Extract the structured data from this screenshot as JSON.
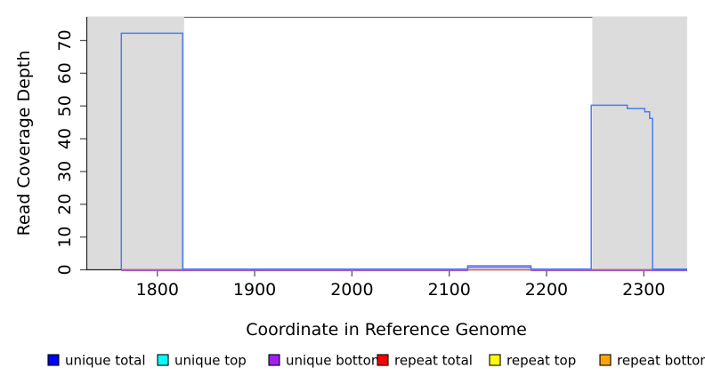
{
  "chart_data": {
    "type": "line",
    "title": "",
    "xlabel": "Coordinate in Reference Genome",
    "ylabel": "Read Coverage Depth",
    "xlim": [
      1727,
      2344.5
    ],
    "ylim": [
      0,
      77.2
    ],
    "x_ticks": [
      1800,
      1900,
      2000,
      2100,
      2200,
      2300
    ],
    "y_ticks": [
      0,
      10,
      20,
      30,
      40,
      50,
      60,
      70
    ],
    "grid": false,
    "legend_position": "bottom",
    "shaded_regions": [
      {
        "name": "left-repeat-region",
        "x1": 1727,
        "x2": 1827.5,
        "color": "#dcdcdc"
      },
      {
        "name": "right-repeat-region",
        "x1": 2247,
        "x2": 2344.5,
        "color": "#dcdcdc"
      }
    ],
    "series": [
      {
        "name": "unique total",
        "legend_color": "#0000ff",
        "line_color": "#4a7cf0",
        "segments": [
          [
            1763,
            1826,
            72
          ],
          [
            1826,
            2119,
            0
          ],
          [
            2119,
            2184,
            1
          ],
          [
            2184,
            2246,
            0
          ],
          [
            2246,
            2283,
            50
          ],
          [
            2283,
            2301,
            49
          ],
          [
            2301,
            2306,
            48
          ],
          [
            2306,
            2309,
            46
          ],
          [
            2309,
            2344.5,
            0
          ]
        ]
      },
      {
        "name": "unique top",
        "legend_color": "#00ffff",
        "line_color": "#00e5e5",
        "segments": []
      },
      {
        "name": "unique bottom",
        "legend_color": "#a020f0",
        "line_color": "#8a5cf0",
        "segments": [
          [
            1763,
            2119,
            0
          ],
          [
            2119,
            2184,
            1
          ],
          [
            2184,
            2344.5,
            0
          ]
        ]
      },
      {
        "name": "repeat total",
        "legend_color": "#ff0000",
        "line_color": "#e8506a",
        "segments": [
          [
            1763,
            1826,
            0
          ],
          [
            2246,
            2309,
            0
          ]
        ]
      },
      {
        "name": "repeat top",
        "legend_color": "#ffff00",
        "line_color": "#d8e4a0",
        "segments": [
          [
            2119,
            2184,
            0
          ]
        ]
      },
      {
        "name": "repeat bottom",
        "legend_color": "#ffa500",
        "line_color": "#ffa500",
        "segments": []
      }
    ]
  }
}
